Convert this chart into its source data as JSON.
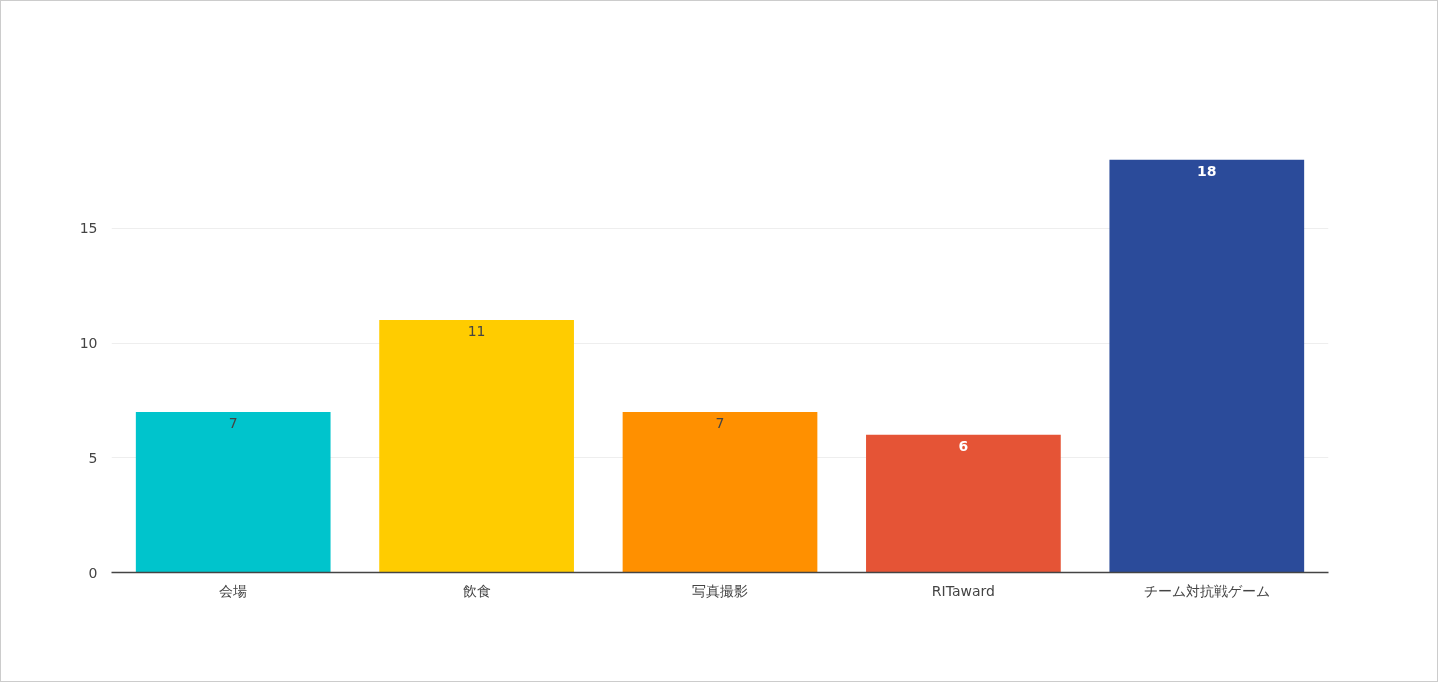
{
  "chart_data": {
    "type": "bar",
    "categories": [
      "会場",
      "飲食",
      "写真撮影",
      "RITaward",
      "チーム対抗戦ゲーム"
    ],
    "values": [
      7,
      11,
      7,
      6,
      18
    ],
    "colors": [
      "#00c4cc",
      "#ffcc00",
      "#ff9000",
      "#e55436",
      "#2b4b9a"
    ],
    "ylim": [
      0,
      18
    ],
    "yticks": [
      0,
      5,
      10,
      15
    ],
    "grid": "y",
    "data_labels": true
  }
}
